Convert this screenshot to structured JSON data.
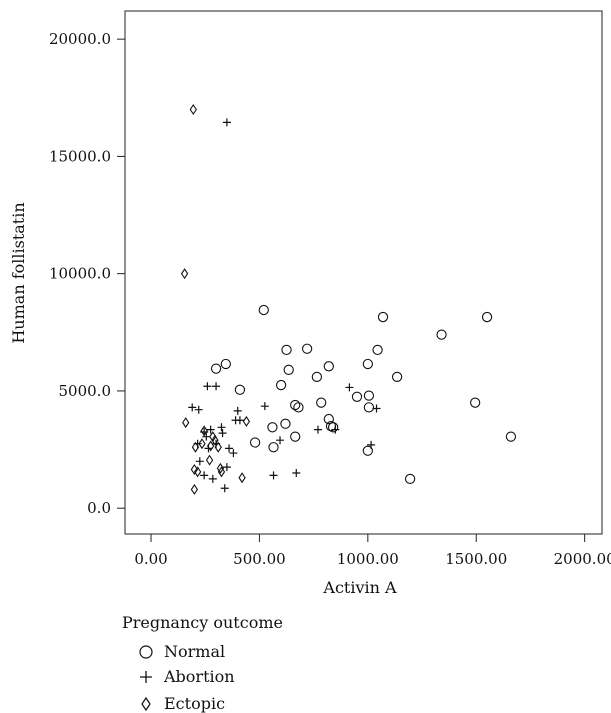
{
  "chart_data": {
    "type": "scatter",
    "title": "",
    "xlabel": "Activin A",
    "ylabel": "Human follistatin",
    "xlim": [
      -120,
      2080
    ],
    "ylim": [
      -1100,
      21200
    ],
    "x_ticks": [
      0,
      500,
      1000,
      1500,
      2000
    ],
    "x_tick_labels": [
      "0.00",
      "500.00",
      "1000.00",
      "1500.00",
      "2000.00"
    ],
    "y_ticks": [
      0,
      5000,
      10000,
      15000,
      20000
    ],
    "y_tick_labels": [
      "0.0",
      "5000.0",
      "10000.0",
      "15000.0",
      "20000.0"
    ],
    "grid": false,
    "legend": {
      "title": "Pregnancy outcome",
      "placement": "bottom-left"
    },
    "series": [
      {
        "name": "Normal",
        "marker": "circle",
        "points": [
          [
            300,
            5950
          ],
          [
            345,
            6150
          ],
          [
            410,
            5050
          ],
          [
            480,
            2800
          ],
          [
            520,
            8450
          ],
          [
            560,
            3450
          ],
          [
            565,
            2600
          ],
          [
            600,
            5250
          ],
          [
            620,
            3600
          ],
          [
            625,
            6750
          ],
          [
            635,
            5900
          ],
          [
            665,
            4400
          ],
          [
            665,
            3050
          ],
          [
            680,
            4300
          ],
          [
            720,
            6800
          ],
          [
            765,
            5600
          ],
          [
            785,
            4500
          ],
          [
            820,
            6050
          ],
          [
            820,
            3800
          ],
          [
            830,
            3500
          ],
          [
            840,
            3450
          ],
          [
            950,
            4750
          ],
          [
            1000,
            6150
          ],
          [
            1005,
            4800
          ],
          [
            1005,
            4300
          ],
          [
            1000,
            2450
          ],
          [
            1045,
            6750
          ],
          [
            1070,
            8150
          ],
          [
            1135,
            5600
          ],
          [
            1195,
            1250
          ],
          [
            1340,
            7400
          ],
          [
            1495,
            4500
          ],
          [
            1550,
            8150
          ],
          [
            1660,
            3050
          ]
        ]
      },
      {
        "name": "Abortion",
        "marker": "plus",
        "points": [
          [
            190,
            4300
          ],
          [
            220,
            4200
          ],
          [
            260,
            5200
          ],
          [
            300,
            5200
          ],
          [
            215,
            2750
          ],
          [
            245,
            3250
          ],
          [
            255,
            3050
          ],
          [
            265,
            2550
          ],
          [
            275,
            3350
          ],
          [
            300,
            2750
          ],
          [
            325,
            3450
          ],
          [
            330,
            3200
          ],
          [
            350,
            1750
          ],
          [
            360,
            2550
          ],
          [
            390,
            3750
          ],
          [
            400,
            4150
          ],
          [
            410,
            3750
          ],
          [
            225,
            2000
          ],
          [
            245,
            1400
          ],
          [
            285,
            1250
          ],
          [
            340,
            850
          ],
          [
            350,
            16450
          ],
          [
            525,
            4350
          ],
          [
            565,
            1400
          ],
          [
            595,
            2900
          ],
          [
            670,
            1500
          ],
          [
            770,
            3350
          ],
          [
            915,
            5150
          ],
          [
            850,
            3350
          ],
          [
            1040,
            4250
          ],
          [
            1015,
            2700
          ],
          [
            380,
            2350
          ]
        ]
      },
      {
        "name": "Ectopic",
        "marker": "diamond",
        "points": [
          [
            195,
            17000
          ],
          [
            155,
            10000
          ],
          [
            160,
            3650
          ],
          [
            200,
            1650
          ],
          [
            205,
            2600
          ],
          [
            200,
            800
          ],
          [
            215,
            1550
          ],
          [
            235,
            2750
          ],
          [
            245,
            3300
          ],
          [
            270,
            2050
          ],
          [
            275,
            2650
          ],
          [
            285,
            3050
          ],
          [
            295,
            2900
          ],
          [
            310,
            2600
          ],
          [
            320,
            1700
          ],
          [
            325,
            1550
          ],
          [
            420,
            1300
          ],
          [
            440,
            3700
          ]
        ]
      }
    ]
  }
}
